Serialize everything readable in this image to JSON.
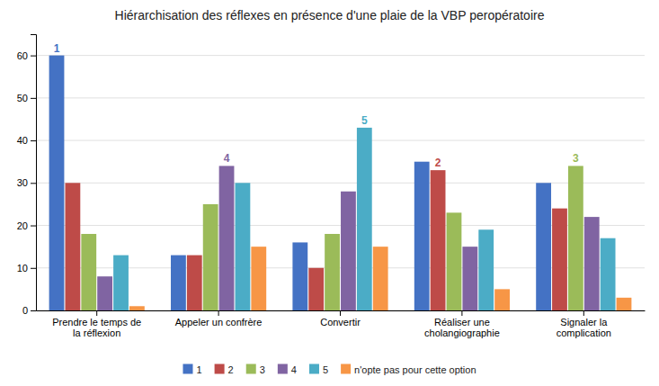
{
  "chart_data": {
    "type": "bar",
    "title": "Hiérarchisation des réflexes en présence d'une plaie de la VBP peropératoire",
    "categories": [
      "Prendre le temps de\nla réflexion",
      "Appeler un confrère",
      "Convertir",
      "Réaliser une\ncholangiographie",
      "Signaler la\ncomplication"
    ],
    "series": [
      {
        "name": "1",
        "color": "#4472C4",
        "values": [
          60,
          13,
          16,
          35,
          30
        ]
      },
      {
        "name": "2",
        "color": "#BE4B48",
        "values": [
          30,
          13,
          10,
          33,
          24
        ]
      },
      {
        "name": "3",
        "color": "#9BBB59",
        "values": [
          18,
          25,
          18,
          23,
          34
        ]
      },
      {
        "name": "4",
        "color": "#8064A2",
        "values": [
          8,
          34,
          28,
          15,
          22
        ]
      },
      {
        "name": "5",
        "color": "#4BACC6",
        "values": [
          13,
          30,
          43,
          19,
          17
        ]
      },
      {
        "name": "n'opte pas pour cette option",
        "color": "#F79646",
        "values": [
          1,
          15,
          15,
          5,
          3
        ]
      }
    ],
    "annotations": [
      {
        "text": "1",
        "series": "1",
        "category": "Prendre le temps de\nla réflexion",
        "color": "#4472C4"
      },
      {
        "text": "4",
        "series": "4",
        "category": "Appeler un confrère",
        "color": "#8064A2"
      },
      {
        "text": "5",
        "series": "5",
        "category": "Convertir",
        "color": "#4BACC6"
      },
      {
        "text": "2",
        "series": "2",
        "category": "Réaliser une\ncholangiographie",
        "color": "#BE4B48"
      },
      {
        "text": "3",
        "series": "3",
        "category": "Signaler la\ncomplication",
        "color": "#9BBB59"
      }
    ],
    "ylim": [
      0,
      65
    ],
    "yticks": [
      0,
      10,
      20,
      30,
      40,
      50,
      60
    ],
    "grid": true,
    "legend": "bottom"
  }
}
